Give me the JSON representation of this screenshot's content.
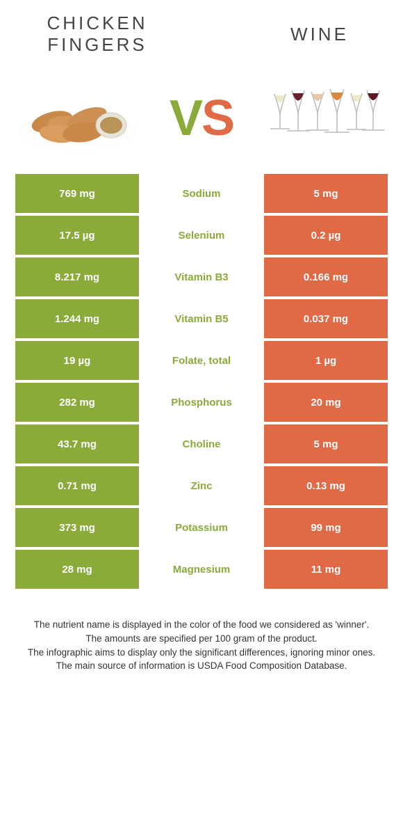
{
  "header": {
    "left_title": "CHICKEN FINGERS",
    "right_title": "WINE"
  },
  "vs": {
    "v": "V",
    "s": "S"
  },
  "colors": {
    "left": "#8aab3a",
    "right": "#e06946",
    "bg": "#ffffff"
  },
  "table": {
    "rows": [
      {
        "left": "769 mg",
        "nutrient": "Sodium",
        "right": "5 mg",
        "winner": "left"
      },
      {
        "left": "17.5 µg",
        "nutrient": "Selenium",
        "right": "0.2 µg",
        "winner": "left"
      },
      {
        "left": "8.217 mg",
        "nutrient": "Vitamin B3",
        "right": "0.166 mg",
        "winner": "left"
      },
      {
        "left": "1.244 mg",
        "nutrient": "Vitamin B5",
        "right": "0.037 mg",
        "winner": "left"
      },
      {
        "left": "19 µg",
        "nutrient": "Folate, total",
        "right": "1 µg",
        "winner": "left"
      },
      {
        "left": "282 mg",
        "nutrient": "Phosphorus",
        "right": "20 mg",
        "winner": "left"
      },
      {
        "left": "43.7 mg",
        "nutrient": "Choline",
        "right": "5 mg",
        "winner": "left"
      },
      {
        "left": "0.71 mg",
        "nutrient": "Zinc",
        "right": "0.13 mg",
        "winner": "left"
      },
      {
        "left": "373 mg",
        "nutrient": "Potassium",
        "right": "99 mg",
        "winner": "left"
      },
      {
        "left": "28 mg",
        "nutrient": "Magnesium",
        "right": "11 mg",
        "winner": "left"
      }
    ]
  },
  "footer": {
    "line1": "The nutrient name is displayed in the color of the food we considered as 'winner'.",
    "line2": "The amounts are specified per 100 gram of the product.",
    "line3": "The infographic aims to display only the significant differences, ignoring minor ones.",
    "line4": "The main source of information is USDA Food Composition Database."
  }
}
